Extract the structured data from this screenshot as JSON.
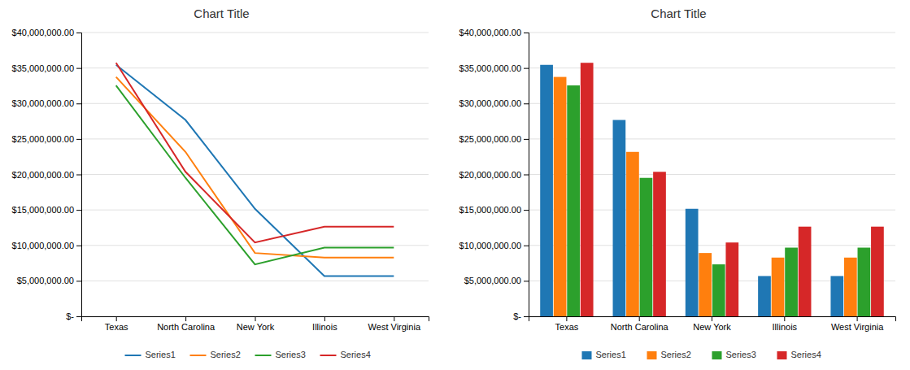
{
  "chart_data": [
    {
      "type": "line",
      "title": "Chart Title",
      "categories": [
        "Texas",
        "North Carolina",
        "New York",
        "Illinois",
        "West Virginia"
      ],
      "series": [
        {
          "name": "Series1",
          "values": [
            35443672.4,
            27674230.52,
            15157128.02,
            5680177.96,
            5680177.96
          ]
        },
        {
          "name": "Series2",
          "values": [
            33741920.96,
            23177294.39,
            8925318.23,
            8280447.26,
            8280447.26
          ]
        },
        {
          "name": "Series3",
          "values": [
            32546249.78,
            19515039.67,
            7323069.39,
            9681824.6,
            9681824.6
          ]
        },
        {
          "name": "Series4",
          "values": [
            35731843.14,
            20366564.57,
            10405515.64,
            12642449.81,
            12642449.81
          ]
        }
      ],
      "ylim": [
        0,
        40000000
      ],
      "yticks": [
        {
          "value": 0,
          "label": "$-"
        },
        {
          "value": 5000000,
          "label": "$5,000,000.00"
        },
        {
          "value": 10000000,
          "label": "$10,000,000.00"
        },
        {
          "value": 15000000,
          "label": "$15,000,000.00"
        },
        {
          "value": 20000000,
          "label": "$20,000,000.00"
        },
        {
          "value": 25000000,
          "label": "$25,000,000.00"
        },
        {
          "value": 30000000,
          "label": "$30,000,000.00"
        },
        {
          "value": 35000000,
          "label": "$35,000,000.00"
        },
        {
          "value": 40000000,
          "label": "$40,000,000.00"
        }
      ],
      "grid": true,
      "legend": "bottom"
    },
    {
      "type": "bar",
      "title": "Chart Title",
      "categories": [
        "Texas",
        "North Carolina",
        "New York",
        "Illinois",
        "West Virginia"
      ],
      "series": [
        {
          "name": "Series1",
          "values": [
            35443672.4,
            27674230.52,
            15157128.02,
            5680177.96,
            5680177.96
          ]
        },
        {
          "name": "Series2",
          "values": [
            33741920.96,
            23177294.39,
            8925318.23,
            8280447.26,
            8280447.26
          ]
        },
        {
          "name": "Series3",
          "values": [
            32546249.78,
            19515039.67,
            7323069.39,
            9681824.6,
            9681824.6
          ]
        },
        {
          "name": "Series4",
          "values": [
            35731843.14,
            20366564.57,
            10405515.64,
            12642449.81,
            12642449.81
          ]
        }
      ],
      "ylim": [
        0,
        40000000
      ],
      "yticks": [
        {
          "value": 0,
          "label": "$-"
        },
        {
          "value": 5000000,
          "label": "$5,000,000.00"
        },
        {
          "value": 10000000,
          "label": "$10,000,000.00"
        },
        {
          "value": 15000000,
          "label": "$15,000,000.00"
        },
        {
          "value": 20000000,
          "label": "$20,000,000.00"
        },
        {
          "value": 25000000,
          "label": "$25,000,000.00"
        },
        {
          "value": 30000000,
          "label": "$30,000,000.00"
        },
        {
          "value": 35000000,
          "label": "$35,000,000.00"
        },
        {
          "value": 40000000,
          "label": "$40,000,000.00"
        }
      ],
      "grid": true,
      "legend": "bottom"
    }
  ]
}
